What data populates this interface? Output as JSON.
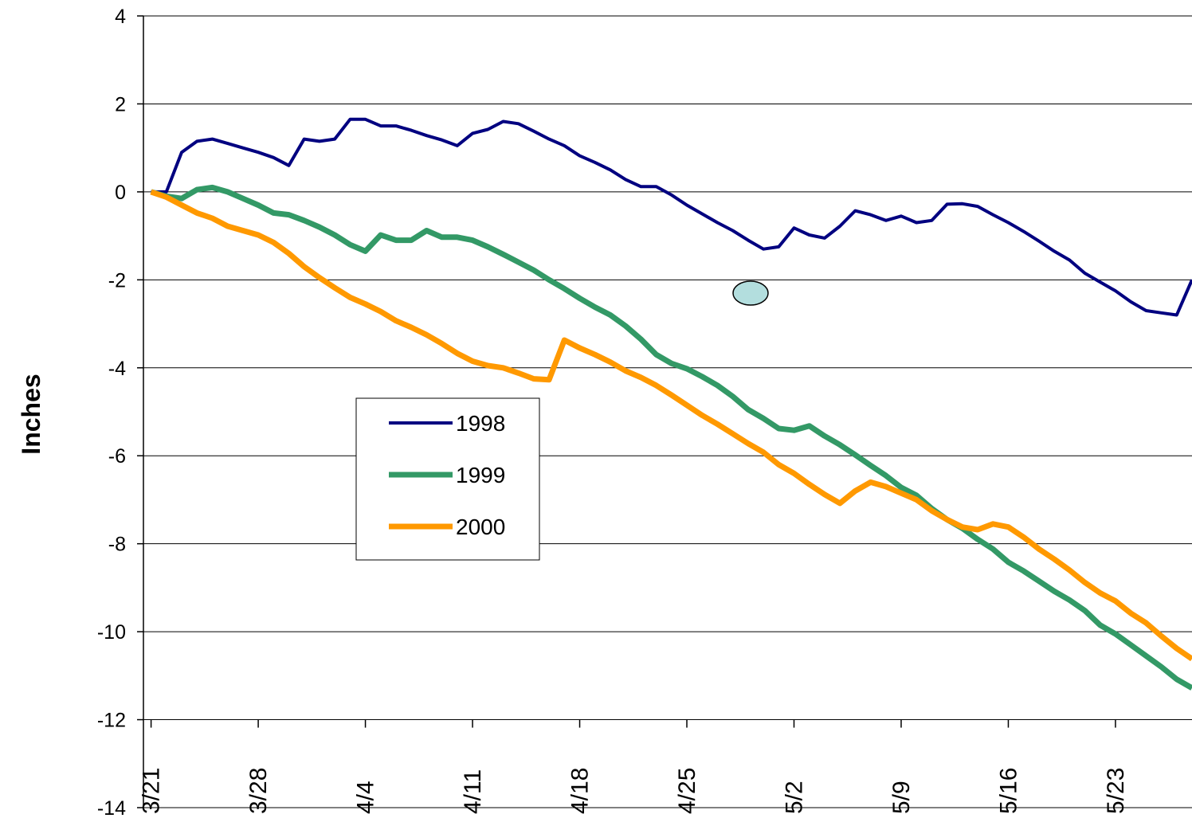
{
  "chart_data": {
    "type": "line",
    "y_label": "Inches",
    "x": [
      0,
      1,
      2,
      3,
      4,
      5,
      6,
      7,
      8,
      9,
      10,
      11,
      12,
      13,
      14,
      15,
      16,
      17,
      18,
      19,
      20,
      21,
      22,
      23,
      24,
      25,
      26,
      27,
      28,
      29,
      30,
      31,
      32,
      33,
      34,
      35,
      36,
      37,
      38,
      39,
      40,
      41,
      42,
      43,
      44,
      45,
      46,
      47,
      48,
      49,
      50,
      51,
      52,
      53,
      54,
      55,
      56,
      57,
      58,
      59,
      60,
      61,
      62,
      63,
      64,
      65,
      66,
      67,
      68
    ],
    "xlim": [
      -0.5,
      68
    ],
    "xticks": [
      {
        "value": 0,
        "label": "3/21"
      },
      {
        "value": 7,
        "label": "3/28"
      },
      {
        "value": 14,
        "label": "4/4"
      },
      {
        "value": 21,
        "label": "4/11"
      },
      {
        "value": 28,
        "label": "4/18"
      },
      {
        "value": 35,
        "label": "4/25"
      },
      {
        "value": 42,
        "label": "5/2"
      },
      {
        "value": 49,
        "label": "5/9"
      },
      {
        "value": 56,
        "label": "5/16"
      },
      {
        "value": 63,
        "label": "5/23"
      }
    ],
    "ylim": [
      -14,
      4
    ],
    "yticks": [
      -14,
      -12,
      -10,
      -8,
      -6,
      -4,
      -2,
      0,
      2,
      4
    ],
    "grid": true,
    "legend": "center-left",
    "series": [
      {
        "name": "1998",
        "color": "#000080",
        "width": 4,
        "values": [
          0,
          0,
          0.9,
          1.15,
          1.2,
          1.1,
          1.0,
          0.9,
          0.78,
          0.6,
          1.2,
          1.15,
          1.2,
          1.65,
          1.65,
          1.5,
          1.5,
          1.4,
          1.28,
          1.18,
          1.05,
          1.33,
          1.42,
          1.6,
          1.55,
          1.38,
          1.2,
          1.05,
          0.82,
          0.67,
          0.5,
          0.28,
          0.12,
          0.12,
          -0.07,
          -0.3,
          -0.5,
          -0.7,
          -0.88,
          -1.1,
          -1.3,
          -1.25,
          -0.82,
          -0.98,
          -1.05,
          -0.78,
          -0.43,
          -0.52,
          -0.65,
          -0.55,
          -0.7,
          -0.65,
          -0.28,
          -0.27,
          -0.33,
          -0.52,
          -0.7,
          -0.9,
          -1.12,
          -1.35,
          -1.55,
          -1.85,
          -2.05,
          -2.25,
          -2.5,
          -2.7,
          -2.75,
          -2.8,
          -2.0
        ]
      },
      {
        "name": "1999",
        "color": "#339966",
        "width": 7,
        "values": [
          0,
          -0.1,
          -0.15,
          0.05,
          0.1,
          0,
          -0.15,
          -0.3,
          -0.48,
          -0.52,
          -0.65,
          -0.8,
          -0.98,
          -1.2,
          -1.35,
          -0.98,
          -1.1,
          -1.1,
          -0.88,
          -1.03,
          -1.03,
          -1.1,
          -1.25,
          -1.42,
          -1.6,
          -1.78,
          -2.0,
          -2.2,
          -2.42,
          -2.62,
          -2.8,
          -3.05,
          -3.35,
          -3.7,
          -3.9,
          -4.02,
          -4.2,
          -4.4,
          -4.65,
          -4.95,
          -5.15,
          -5.38,
          -5.42,
          -5.32,
          -5.55,
          -5.75,
          -5.98,
          -6.22,
          -6.45,
          -6.72,
          -6.9,
          -7.2,
          -7.45,
          -7.65,
          -7.9,
          -8.12,
          -8.42,
          -8.62,
          -8.85,
          -9.08,
          -9.28,
          -9.52,
          -9.85,
          -10.05,
          -10.3,
          -10.55,
          -10.8,
          -11.08,
          -11.28
        ]
      },
      {
        "name": "2000",
        "color": "#ff9900",
        "width": 7,
        "values": [
          0,
          -0.12,
          -0.3,
          -0.48,
          -0.6,
          -0.78,
          -0.88,
          -0.98,
          -1.15,
          -1.4,
          -1.7,
          -1.95,
          -2.18,
          -2.4,
          -2.55,
          -2.72,
          -2.93,
          -3.08,
          -3.25,
          -3.45,
          -3.67,
          -3.85,
          -3.95,
          -4.0,
          -4.12,
          -4.25,
          -4.27,
          -3.37,
          -3.55,
          -3.7,
          -3.87,
          -4.07,
          -4.22,
          -4.4,
          -4.62,
          -4.85,
          -5.08,
          -5.28,
          -5.5,
          -5.72,
          -5.92,
          -6.2,
          -6.4,
          -6.65,
          -6.88,
          -7.08,
          -6.8,
          -6.6,
          -6.7,
          -6.85,
          -7.0,
          -7.25,
          -7.45,
          -7.62,
          -7.68,
          -7.55,
          -7.62,
          -7.85,
          -8.12,
          -8.35,
          -8.6,
          -8.88,
          -9.12,
          -9.3,
          -9.58,
          -9.8,
          -10.1,
          -10.38,
          -10.62
        ]
      }
    ]
  }
}
